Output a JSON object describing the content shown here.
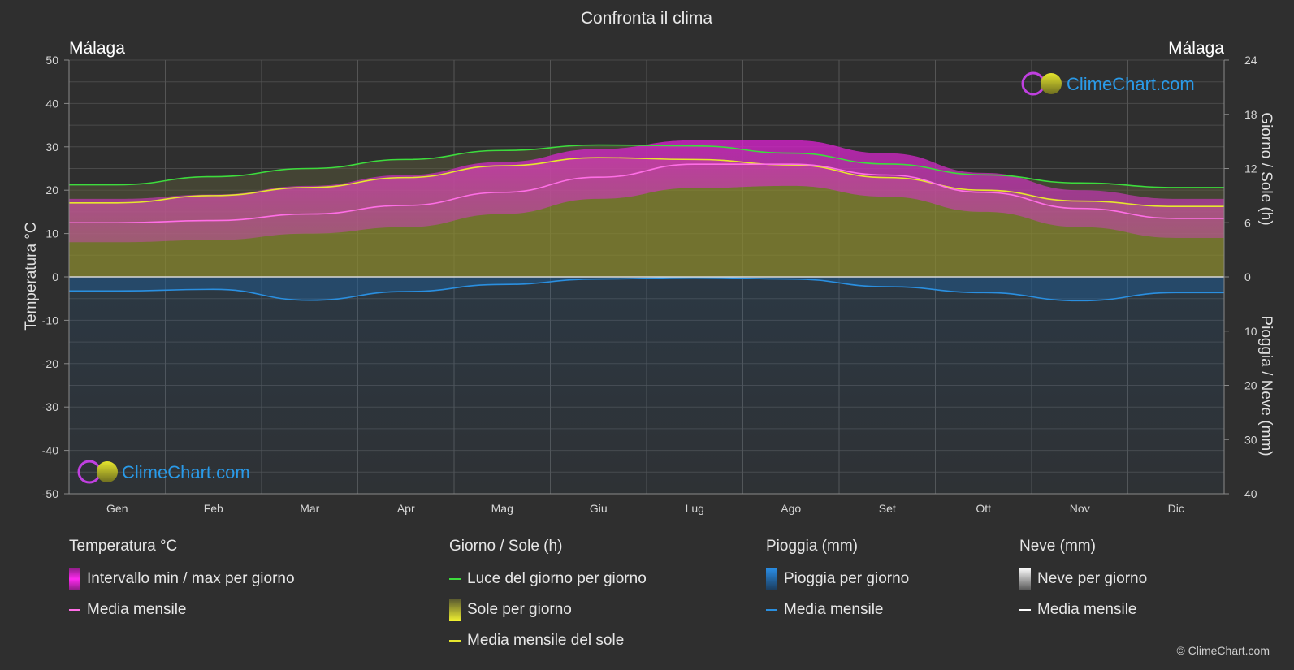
{
  "title": "Confronta il clima",
  "copyright": "© ClimeChart.com",
  "watermark": "ClimeChart.com",
  "chart_data": {
    "type": "area",
    "title": "Confronta il clima",
    "location_left": "Málaga",
    "location_right": "Málaga",
    "categories": [
      "Gen",
      "Feb",
      "Mar",
      "Apr",
      "Mag",
      "Giu",
      "Lug",
      "Ago",
      "Set",
      "Ott",
      "Nov",
      "Dic"
    ],
    "y_left": {
      "label": "Temperatura °C",
      "range": [
        -50,
        50
      ],
      "ticks": [
        50,
        40,
        30,
        20,
        10,
        0,
        -10,
        -20,
        -30,
        -40,
        -50
      ]
    },
    "y_right_top": {
      "label": "Giorno / Sole (h)",
      "range": [
        0,
        24
      ],
      "ticks": [
        24,
        18,
        12,
        6,
        0
      ]
    },
    "y_right_bottom": {
      "label": "Pioggia / Neve (mm)",
      "range": [
        0,
        40
      ],
      "ticks": [
        0,
        10,
        20,
        30,
        40
      ]
    },
    "series": [
      {
        "name": "Luce del giorno per giorno",
        "unit": "h",
        "color": "#3ddc3d",
        "values": [
          10.2,
          11.1,
          12.0,
          13.0,
          14.0,
          14.6,
          14.5,
          13.7,
          12.5,
          11.3,
          10.4,
          9.9
        ]
      },
      {
        "name": "Media mensile del sole",
        "unit": "h",
        "color": "#e6e62e",
        "values": [
          8.2,
          9.0,
          9.9,
          11.0,
          12.3,
          13.2,
          13.0,
          12.4,
          11.0,
          9.6,
          8.4,
          7.8
        ]
      },
      {
        "name": "Media mensile",
        "group": "Temperatura °C",
        "unit": "°C",
        "color": "#ff6ee6",
        "values": [
          12.5,
          13.0,
          14.5,
          16.5,
          19.5,
          23.0,
          26.0,
          26.0,
          23.5,
          19.5,
          15.8,
          13.5
        ]
      },
      {
        "name": "Temperatura max",
        "unit": "°C",
        "values": [
          18.0,
          19.0,
          21.0,
          23.5,
          26.5,
          29.5,
          31.5,
          31.5,
          28.5,
          24.0,
          20.0,
          18.0
        ]
      },
      {
        "name": "Temperatura min",
        "unit": "°C",
        "values": [
          8.0,
          8.5,
          10.0,
          11.5,
          14.5,
          18.0,
          20.5,
          21.0,
          18.5,
          15.0,
          11.5,
          9.0
        ]
      },
      {
        "name": "Media mensile",
        "group": "Pioggia (mm)",
        "unit": "mm",
        "color": "#2a8fe0",
        "values": [
          2.6,
          2.3,
          4.3,
          2.7,
          1.4,
          0.4,
          0.1,
          0.4,
          1.8,
          2.9,
          4.4,
          2.9
        ]
      },
      {
        "name": "Media mensile",
        "group": "Neve (mm)",
        "unit": "mm",
        "color": "#ffffff",
        "values": [
          0,
          0,
          0,
          0,
          0,
          0,
          0,
          0,
          0,
          0,
          0,
          0
        ]
      }
    ],
    "grid": true
  },
  "legend": [
    {
      "title": "Temperatura °C",
      "items": [
        {
          "label": "Intervallo min / max per giorno",
          "swatch": "box",
          "color": "#e11fd6"
        },
        {
          "label": "Media mensile",
          "swatch": "line",
          "color": "#ff6ee6"
        }
      ]
    },
    {
      "title": "Giorno / Sole (h)",
      "items": [
        {
          "label": "Luce del giorno per giorno",
          "swatch": "line",
          "color": "#3ddc3d"
        },
        {
          "label": "Sole per giorno",
          "swatch": "box",
          "color": "#d6d63a"
        },
        {
          "label": "Media mensile del sole",
          "swatch": "line",
          "color": "#e6e62e"
        }
      ]
    },
    {
      "title": "Pioggia (mm)",
      "items": [
        {
          "label": "Pioggia per giorno",
          "swatch": "box",
          "color": "#2a7fd6"
        },
        {
          "label": "Media mensile",
          "swatch": "line",
          "color": "#2a8fe0"
        }
      ]
    },
    {
      "title": "Neve (mm)",
      "items": [
        {
          "label": "Neve per giorno",
          "swatch": "box",
          "color": "#d9d9d9"
        },
        {
          "label": "Media mensile",
          "swatch": "line",
          "color": "#ffffff"
        }
      ]
    }
  ]
}
